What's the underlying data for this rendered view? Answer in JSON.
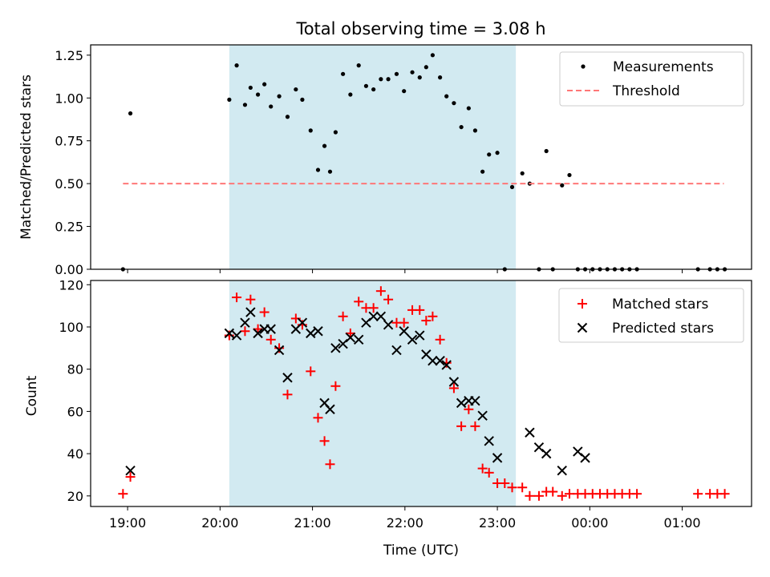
{
  "title": "Total observing time = 3.08 h",
  "chart_data": [
    {
      "type": "scatter",
      "panel": "top",
      "ylabel": "Matched/Predicted stars",
      "xlabel": "",
      "ylim": [
        0,
        1.31
      ],
      "xlim_hours": [
        18.6,
        25.75
      ],
      "yticks": [
        0.0,
        0.25,
        0.5,
        0.75,
        1.0,
        1.25
      ],
      "ytick_labels": [
        "0.00",
        "0.25",
        "0.50",
        "0.75",
        "1.00",
        "1.25"
      ],
      "grid": false,
      "legend_position": "top-right",
      "shaded_span_hours": [
        20.1,
        23.2
      ],
      "shaded_color": "#add8e6",
      "series": [
        {
          "name": "Measurements",
          "marker": "dot",
          "color": "#000000",
          "x_hours": [
            18.95,
            19.03,
            20.1,
            20.18,
            20.27,
            20.33,
            20.41,
            20.48,
            20.55,
            20.64,
            20.73,
            20.82,
            20.89,
            20.98,
            21.06,
            21.13,
            21.19,
            21.25,
            21.33,
            21.41,
            21.5,
            21.58,
            21.66,
            21.74,
            21.82,
            21.91,
            21.99,
            22.08,
            22.16,
            22.23,
            22.3,
            22.38,
            22.45,
            22.53,
            22.61,
            22.69,
            22.76,
            22.84,
            22.91,
            23.0,
            23.08,
            23.16,
            23.27,
            23.35,
            23.45,
            23.53,
            23.6,
            23.7,
            23.78,
            23.87,
            23.95,
            24.03,
            24.11,
            24.19,
            24.27,
            24.35,
            24.43,
            24.51,
            25.17,
            25.3,
            25.38,
            25.46
          ],
          "y": [
            0.0,
            0.91,
            0.99,
            1.19,
            0.96,
            1.06,
            1.02,
            1.08,
            0.95,
            1.01,
            0.89,
            1.05,
            0.99,
            0.81,
            0.58,
            0.72,
            0.57,
            0.8,
            1.14,
            1.02,
            1.19,
            1.07,
            1.05,
            1.11,
            1.11,
            1.14,
            1.04,
            1.15,
            1.12,
            1.18,
            1.25,
            1.12,
            1.01,
            0.97,
            0.83,
            0.94,
            0.81,
            0.57,
            0.67,
            0.68,
            0.0,
            0.48,
            0.56,
            0.5,
            0.0,
            0.69,
            0.0,
            0.49,
            0.55,
            0.0,
            0.0,
            0.0,
            0.0,
            0.0,
            0.0,
            0.0,
            0.0,
            0.0,
            0.0,
            0.0,
            0.0,
            0.0
          ]
        },
        {
          "name": "Threshold",
          "marker": "dashed-line",
          "color": "#ff7777",
          "x_hours": [
            18.95,
            25.45
          ],
          "y": [
            0.5,
            0.5
          ]
        }
      ]
    },
    {
      "type": "scatter",
      "panel": "bottom",
      "ylabel": "Count",
      "xlabel": "Time (UTC)",
      "ylim": [
        15,
        122
      ],
      "xlim_hours": [
        18.6,
        25.75
      ],
      "yticks": [
        20,
        40,
        60,
        80,
        100,
        120
      ],
      "ytick_labels": [
        "20",
        "40",
        "60",
        "80",
        "100",
        "120"
      ],
      "xticks_hours": [
        19,
        20,
        21,
        22,
        23,
        24,
        25
      ],
      "xtick_labels": [
        "19:00",
        "20:00",
        "21:00",
        "22:00",
        "23:00",
        "00:00",
        "01:00"
      ],
      "grid": false,
      "legend_position": "top-right",
      "shaded_span_hours": [
        20.1,
        23.2
      ],
      "shaded_color": "#add8e6",
      "series": [
        {
          "name": "Matched stars",
          "marker": "plus",
          "color": "#ff0000",
          "x_hours": [
            18.95,
            19.03,
            20.1,
            20.18,
            20.27,
            20.33,
            20.41,
            20.48,
            20.55,
            20.64,
            20.73,
            20.82,
            20.89,
            20.98,
            21.06,
            21.13,
            21.19,
            21.25,
            21.33,
            21.41,
            21.5,
            21.58,
            21.66,
            21.74,
            21.82,
            21.91,
            21.99,
            22.08,
            22.16,
            22.23,
            22.3,
            22.38,
            22.45,
            22.53,
            22.61,
            22.69,
            22.76,
            22.84,
            22.91,
            23.0,
            23.08,
            23.16,
            23.27,
            23.35,
            23.45,
            23.53,
            23.6,
            23.7,
            23.78,
            23.87,
            23.95,
            24.03,
            24.11,
            24.19,
            24.27,
            24.35,
            24.43,
            24.51,
            25.17,
            25.3,
            25.38,
            25.46
          ],
          "y": [
            21,
            29,
            96,
            114,
            98,
            113,
            99,
            107,
            94,
            90,
            68,
            104,
            101,
            79,
            57,
            46,
            35,
            72,
            105,
            97,
            112,
            109,
            109,
            117,
            113,
            102,
            102,
            108,
            108,
            103,
            105,
            94,
            83,
            71,
            53,
            61,
            53,
            33,
            31,
            26,
            26,
            24,
            24,
            20,
            20,
            22,
            22,
            20,
            21,
            21,
            21,
            21,
            21,
            21,
            21,
            21,
            21,
            21,
            21,
            21,
            21,
            21
          ]
        },
        {
          "name": "Predicted stars",
          "marker": "x",
          "color": "#000000",
          "x_hours": [
            19.03,
            20.1,
            20.18,
            20.27,
            20.33,
            20.41,
            20.48,
            20.55,
            20.64,
            20.73,
            20.82,
            20.89,
            20.98,
            21.06,
            21.13,
            21.19,
            21.25,
            21.33,
            21.41,
            21.5,
            21.58,
            21.66,
            21.74,
            21.82,
            21.91,
            21.99,
            22.08,
            22.16,
            22.23,
            22.3,
            22.38,
            22.45,
            22.53,
            22.61,
            22.69,
            22.76,
            22.84,
            22.91,
            23.0,
            23.35,
            23.45,
            23.53,
            23.7,
            23.87,
            23.95
          ],
          "y": [
            32,
            97,
            96,
            102,
            107,
            97,
            99,
            99,
            89,
            76,
            99,
            102,
            97,
            98,
            64,
            61,
            90,
            92,
            95,
            94,
            102,
            105,
            105,
            101,
            89,
            98,
            94,
            96,
            87,
            84,
            84,
            82,
            74,
            64,
            65,
            65,
            58,
            46,
            38,
            50,
            43,
            40,
            32,
            41,
            38
          ]
        }
      ]
    }
  ]
}
